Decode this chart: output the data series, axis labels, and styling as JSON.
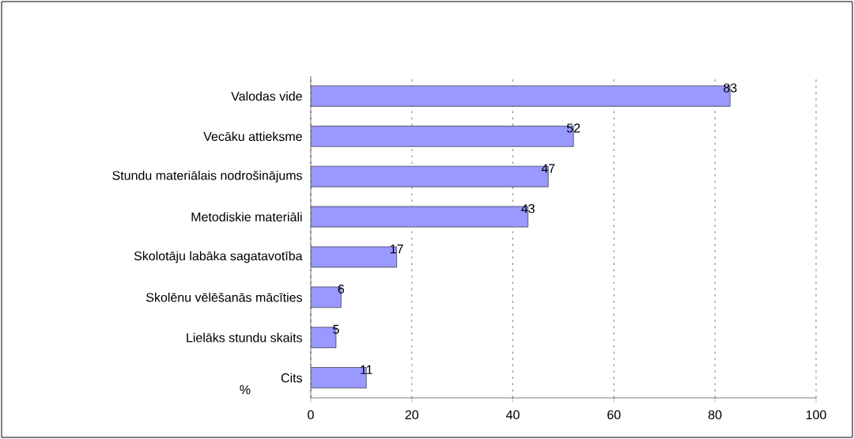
{
  "chart_data": {
    "type": "bar",
    "orientation": "horizontal",
    "xlabel": "%",
    "categories": [
      "Valodas vide",
      "Vecāku attieksme",
      "Stundu materiālais nodrošinājums",
      "Metodiskie materiāli",
      "Skolotāju labāka sagatavotība",
      "Skolēnu vēlēšanās mācīties",
      "Lielāks stundu skaits",
      "Cits"
    ],
    "values": [
      83,
      52,
      47,
      43,
      17,
      6,
      5,
      11
    ],
    "color": "#9999ff",
    "data_labels": true,
    "xlim": [
      0,
      100
    ],
    "xticks": [
      0,
      20,
      40,
      60,
      80,
      100
    ],
    "grid": "x"
  }
}
